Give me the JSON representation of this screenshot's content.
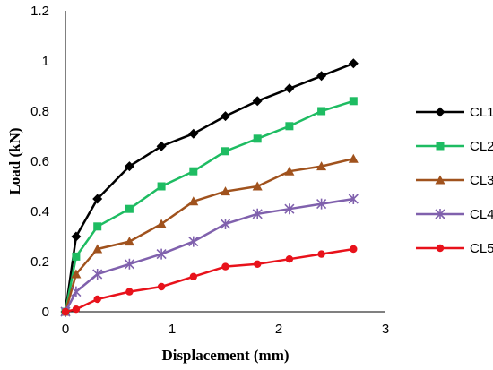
{
  "chart_data": {
    "type": "line",
    "title": "",
    "xlabel": "Displacement (mm)",
    "ylabel": "Load (kN)",
    "xlim": [
      0,
      3
    ],
    "ylim": [
      0,
      1.2
    ],
    "x_ticks": [
      "0",
      "1",
      "2",
      "3"
    ],
    "y_ticks": [
      "0",
      "0.2",
      "0.4",
      "0.6",
      "0.8",
      "1",
      "1.2"
    ],
    "grid": false,
    "legend_position": "right",
    "x": [
      0,
      0.1,
      0.3,
      0.6,
      0.9,
      1.2,
      1.5,
      1.8,
      2.1,
      2.4,
      2.7
    ],
    "series": [
      {
        "name": "CL1",
        "color": "#000000",
        "marker": "diamond",
        "values": [
          0,
          0.3,
          0.45,
          0.58,
          0.66,
          0.71,
          0.78,
          0.84,
          0.89,
          0.94,
          0.99
        ]
      },
      {
        "name": "CL2",
        "color": "#1ebc62",
        "marker": "square",
        "values": [
          0,
          0.22,
          0.34,
          0.41,
          0.5,
          0.56,
          0.64,
          0.69,
          0.74,
          0.8,
          0.84
        ]
      },
      {
        "name": "CL3",
        "color": "#a0521d",
        "marker": "triangle",
        "values": [
          0,
          0.15,
          0.25,
          0.28,
          0.35,
          0.44,
          0.48,
          0.5,
          0.56,
          0.58,
          0.61
        ]
      },
      {
        "name": "CL4",
        "color": "#8061ad",
        "marker": "star",
        "values": [
          0,
          0.08,
          0.15,
          0.19,
          0.23,
          0.28,
          0.35,
          0.39,
          0.41,
          0.43,
          0.45
        ]
      },
      {
        "name": "CL5",
        "color": "#e8121b",
        "marker": "circle",
        "values": [
          0,
          0.01,
          0.05,
          0.08,
          0.1,
          0.14,
          0.18,
          0.19,
          0.21,
          0.23,
          0.25
        ]
      }
    ]
  }
}
